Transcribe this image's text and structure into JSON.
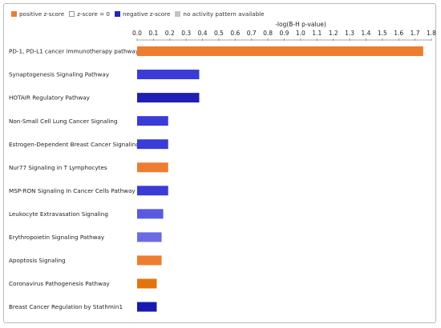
{
  "legend": [
    {
      "label": "positive z-score",
      "color": "#ed7d31",
      "border": "#ed7d31"
    },
    {
      "label": "z-score = 0",
      "color": "#ffffff",
      "border": "#9a9a9a"
    },
    {
      "label": "negative z-score",
      "color": "#2424b8",
      "border": "#2424b8"
    },
    {
      "label": "no activity pattern available",
      "color": "#c4c4c4",
      "border": "#c4c4c4"
    }
  ],
  "chart_data": {
    "type": "bar",
    "orientation": "horizontal",
    "xlabel": "-log(B-H p-value)",
    "xlim": [
      0,
      1.8
    ],
    "ticks": [
      "0.0",
      "0.1",
      "0.2",
      "0.3",
      "0.4",
      "0.5",
      "0.6",
      "0.7",
      "0.8",
      "0.9",
      "1.0",
      "1.1",
      "1.2",
      "1.3",
      "1.4",
      "1.5",
      "1.6",
      "1.7",
      "1.8"
    ],
    "grid": false,
    "legend_position": "top-left",
    "categories": [
      "PD-1, PD-L1 cancer immunotherapy pathway",
      "Synaptogenesis Signaling Pathway",
      "HOTAIR Regulatory Pathway",
      "Non-Small Cell Lung Cancer Signaling",
      "Estrogen-Dependent Breast Cancer Signaling",
      "Nur77 Signaling in T Lymphocytes",
      "MSP-RON Signaling In Cancer Cells Pathway",
      "Leukocyte Extravasation Signaling",
      "Erythropoietin Signaling Pathway",
      "Apoptosis Signaling",
      "Coronavirus Pathogenesis Pathway",
      "Breast Cancer Regulation by Stathmin1"
    ],
    "values": [
      1.75,
      0.38,
      0.38,
      0.19,
      0.19,
      0.19,
      0.19,
      0.16,
      0.15,
      0.15,
      0.12,
      0.12
    ],
    "colors": [
      "#ed7d31",
      "#3b3bd8",
      "#1f1fb5",
      "#3b3bd8",
      "#3b3bd8",
      "#ed7d31",
      "#3b3bd8",
      "#5a5ae0",
      "#6b6be6",
      "#ed7d31",
      "#e3730e",
      "#1a1ab0"
    ]
  }
}
